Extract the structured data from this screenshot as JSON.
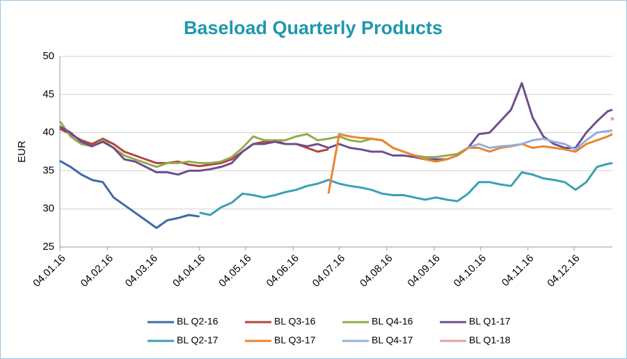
{
  "chart_data": {
    "type": "line",
    "title": "Baseload Quarterly Products",
    "ylabel": "EUR",
    "x": [
      "04.01.16",
      "11.01.16",
      "18.01.16",
      "25.01.16",
      "01.02.16",
      "08.02.16",
      "15.02.16",
      "22.02.16",
      "29.02.16",
      "07.03.16",
      "14.03.16",
      "21.03.16",
      "28.03.16",
      "04.04.16",
      "11.04.16",
      "18.04.16",
      "25.04.16",
      "02.05.16",
      "09.05.16",
      "16.05.16",
      "23.05.16",
      "30.05.16",
      "06.06.16",
      "13.06.16",
      "20.06.16",
      "27.06.16",
      "04.07.16",
      "11.07.16",
      "18.07.16",
      "25.07.16",
      "01.08.16",
      "08.08.16",
      "15.08.16",
      "22.08.16",
      "29.08.16",
      "05.09.16",
      "12.09.16",
      "19.09.16",
      "26.09.16",
      "03.10.16",
      "10.10.16",
      "17.10.16",
      "24.10.16",
      "31.10.16",
      "07.11.16",
      "14.11.16",
      "21.11.16",
      "28.11.16",
      "05.12.16",
      "12.12.16",
      "19.12.16",
      "26.12.16",
      "29.12.16"
    ],
    "xlim": [
      "04.01.16",
      "29.12.16"
    ],
    "xticks": [
      "04.01.16",
      "04.02.16",
      "04.03.16",
      "04.04.16",
      "04.05.16",
      "04.06.16",
      "04.07.16",
      "04.08.16",
      "04.09.16",
      "04.10.16",
      "04.11.16",
      "04.12.16"
    ],
    "ylim": [
      25,
      50
    ],
    "yticks": [
      25,
      30,
      35,
      40,
      45,
      50
    ],
    "grid": true,
    "series": [
      {
        "name": "BL Q2-16",
        "color": "#3c6aa6",
        "values": [
          36.3,
          35.5,
          34.5,
          33.8,
          33.5,
          31.5,
          30.5,
          29.5,
          28.5,
          27.5,
          28.5,
          28.8,
          29.2,
          29.0,
          null,
          null,
          null,
          null,
          null,
          null,
          null,
          null,
          null,
          null,
          null,
          null,
          null,
          null,
          null,
          null,
          null,
          null,
          null,
          null,
          null,
          null,
          null,
          null,
          null,
          null,
          null,
          null,
          null,
          null,
          null,
          null,
          null,
          null,
          null,
          null,
          null,
          null,
          null
        ]
      },
      {
        "name": "BL Q3-16",
        "color": "#b5423d",
        "values": [
          40.5,
          39.8,
          39.0,
          38.5,
          39.2,
          38.5,
          37.5,
          37.0,
          36.5,
          36.0,
          36.0,
          36.2,
          35.8,
          35.6,
          35.8,
          36.0,
          36.5,
          37.5,
          38.5,
          38.8,
          39.0,
          38.5,
          38.5,
          38.0,
          37.5,
          37.8,
          null,
          null,
          null,
          null,
          null,
          null,
          null,
          null,
          null,
          null,
          null,
          null,
          null,
          null,
          null,
          null,
          null,
          null,
          null,
          null,
          null,
          null,
          null,
          null,
          null,
          null,
          null
        ]
      },
      {
        "name": "BL Q4-16",
        "color": "#8fae4a",
        "values": [
          41.5,
          39.5,
          38.5,
          38.2,
          39.0,
          38.0,
          37.0,
          36.5,
          36.0,
          35.5,
          36.0,
          36.0,
          36.2,
          36.0,
          36.0,
          36.2,
          36.8,
          38.0,
          39.5,
          39.0,
          39.0,
          39.0,
          39.5,
          39.8,
          39.0,
          39.2,
          39.5,
          39.0,
          38.8,
          39.2,
          39.0,
          38.0,
          37.5,
          37.0,
          36.8,
          36.8,
          37.0,
          37.2,
          38.0,
          null,
          null,
          null,
          null,
          null,
          null,
          null,
          null,
          null,
          null,
          null,
          null,
          null,
          null
        ]
      },
      {
        "name": "BL Q1-17",
        "color": "#6f4d8e",
        "values": [
          40.8,
          40.0,
          38.8,
          38.2,
          38.8,
          38.0,
          36.5,
          36.2,
          35.5,
          34.8,
          34.8,
          34.5,
          35.0,
          35.0,
          35.2,
          35.5,
          36.0,
          37.5,
          38.5,
          38.5,
          38.8,
          38.5,
          38.5,
          38.2,
          38.5,
          38.0,
          38.5,
          38.0,
          37.8,
          37.5,
          37.5,
          37.0,
          37.0,
          36.8,
          36.5,
          36.5,
          36.5,
          37.0,
          38.0,
          39.8,
          40.0,
          41.5,
          43.0,
          46.5,
          42.0,
          39.5,
          38.5,
          38.0,
          38.0,
          40.0,
          41.5,
          42.8,
          43.0
        ]
      },
      {
        "name": "BL Q2-17",
        "color": "#3aa0b3",
        "values": [
          null,
          null,
          null,
          null,
          null,
          null,
          null,
          null,
          null,
          null,
          null,
          null,
          null,
          29.5,
          29.2,
          30.2,
          30.8,
          32.0,
          31.8,
          31.5,
          31.8,
          32.2,
          32.5,
          33.0,
          33.3,
          33.8,
          33.3,
          33.0,
          32.8,
          32.5,
          32.0,
          31.8,
          31.8,
          31.5,
          31.2,
          31.5,
          31.2,
          31.0,
          32.0,
          33.5,
          33.5,
          33.2,
          33.0,
          34.8,
          34.5,
          34.0,
          33.8,
          33.5,
          32.5,
          33.5,
          35.5,
          35.9,
          36.0
        ]
      },
      {
        "name": "BL Q3-17",
        "color": "#e8842f",
        "values": [
          null,
          null,
          null,
          null,
          null,
          null,
          null,
          null,
          null,
          null,
          null,
          null,
          null,
          null,
          null,
          null,
          null,
          null,
          null,
          null,
          null,
          null,
          null,
          null,
          null,
          32.0,
          39.8,
          39.5,
          39.3,
          39.2,
          39.0,
          38.0,
          37.5,
          37.0,
          36.5,
          36.2,
          36.5,
          37.0,
          38.0,
          38.0,
          37.5,
          38.0,
          38.2,
          38.5,
          38.0,
          38.2,
          38.0,
          37.8,
          37.5,
          38.5,
          39.0,
          39.5,
          39.8
        ]
      },
      {
        "name": "BL Q4-17",
        "color": "#93aedc",
        "values": [
          null,
          null,
          null,
          null,
          null,
          null,
          null,
          null,
          null,
          null,
          null,
          null,
          null,
          null,
          null,
          null,
          null,
          null,
          null,
          null,
          null,
          null,
          null,
          null,
          null,
          null,
          null,
          null,
          null,
          null,
          null,
          null,
          null,
          null,
          null,
          null,
          null,
          null,
          38.0,
          38.5,
          38.0,
          38.2,
          38.3,
          38.5,
          39.0,
          39.2,
          38.8,
          38.5,
          37.8,
          39.0,
          40.0,
          40.2,
          40.3
        ]
      },
      {
        "name": "BL Q1-18",
        "color": "#e0a3a0",
        "values": [
          null,
          null,
          null,
          null,
          null,
          null,
          null,
          null,
          null,
          null,
          null,
          null,
          null,
          null,
          null,
          null,
          null,
          null,
          null,
          null,
          null,
          null,
          null,
          null,
          null,
          null,
          null,
          null,
          null,
          null,
          null,
          null,
          null,
          null,
          null,
          null,
          null,
          null,
          null,
          null,
          null,
          null,
          null,
          null,
          null,
          null,
          null,
          null,
          null,
          null,
          null,
          null,
          41.8
        ]
      }
    ]
  }
}
